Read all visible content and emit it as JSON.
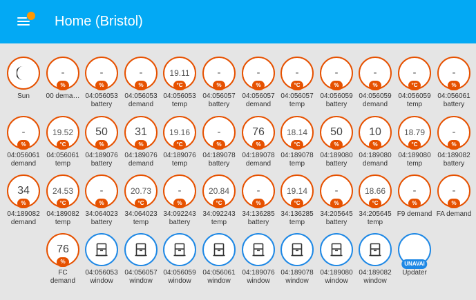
{
  "header": {
    "title": "Home (Bristol)"
  },
  "badges": [
    {
      "value": "",
      "unit": "",
      "label1": "Sun",
      "label2": "",
      "icon": "moon-icon"
    },
    {
      "value": "-",
      "unit": "%",
      "label1": "00 dema…",
      "label2": ""
    },
    {
      "value": "-",
      "unit": "%",
      "label1": "04:056053",
      "label2": "battery"
    },
    {
      "value": "-",
      "unit": "%",
      "label1": "04:056053",
      "label2": "demand"
    },
    {
      "value": "19.11",
      "unit": "°C",
      "label1": "04:056053",
      "label2": "temp"
    },
    {
      "value": "-",
      "unit": "%",
      "label1": "04:056057",
      "label2": "battery"
    },
    {
      "value": "-",
      "unit": "%",
      "label1": "04:056057",
      "label2": "demand"
    },
    {
      "value": "-",
      "unit": "°C",
      "label1": "04:056057",
      "label2": "temp"
    },
    {
      "value": "-",
      "unit": "%",
      "label1": "04:056059",
      "label2": "battery"
    },
    {
      "value": "-",
      "unit": "%",
      "label1": "04:056059",
      "label2": "demand"
    },
    {
      "value": "-",
      "unit": "°C",
      "label1": "04:056059",
      "label2": "temp"
    },
    {
      "value": "-",
      "unit": "%",
      "label1": "04:056061",
      "label2": "battery"
    },
    {
      "value": "-",
      "unit": "%",
      "label1": "04:056061",
      "label2": "demand"
    },
    {
      "value": "19.52",
      "unit": "°C",
      "label1": "04:056061",
      "label2": "temp"
    },
    {
      "value": "50",
      "unit": "%",
      "label1": "04:189076",
      "label2": "battery"
    },
    {
      "value": "31",
      "unit": "%",
      "label1": "04:189076",
      "label2": "demand"
    },
    {
      "value": "19.16",
      "unit": "°C",
      "label1": "04:189076",
      "label2": "temp"
    },
    {
      "value": "-",
      "unit": "%",
      "label1": "04:189078",
      "label2": "battery"
    },
    {
      "value": "76",
      "unit": "%",
      "label1": "04:189078",
      "label2": "demand"
    },
    {
      "value": "18.14",
      "unit": "°C",
      "label1": "04:189078",
      "label2": "temp"
    },
    {
      "value": "50",
      "unit": "%",
      "label1": "04:189080",
      "label2": "battery"
    },
    {
      "value": "10",
      "unit": "%",
      "label1": "04:189080",
      "label2": "demand"
    },
    {
      "value": "18.79",
      "unit": "°C",
      "label1": "04:189080",
      "label2": "temp"
    },
    {
      "value": "-",
      "unit": "%",
      "label1": "04:189082",
      "label2": "battery"
    },
    {
      "value": "34",
      "unit": "%",
      "label1": "04:189082",
      "label2": "demand"
    },
    {
      "value": "24.53",
      "unit": "°C",
      "label1": "04:189082",
      "label2": "temp"
    },
    {
      "value": "-",
      "unit": "%",
      "label1": "34:064023",
      "label2": "battery"
    },
    {
      "value": "20.73",
      "unit": "°C",
      "label1": "34:064023",
      "label2": "temp"
    },
    {
      "value": "-",
      "unit": "%",
      "label1": "34:092243",
      "label2": "battery"
    },
    {
      "value": "20.84",
      "unit": "°C",
      "label1": "34:092243",
      "label2": "temp"
    },
    {
      "value": "-",
      "unit": "%",
      "label1": "34:136285",
      "label2": "battery"
    },
    {
      "value": "19.14",
      "unit": "°C",
      "label1": "34:136285",
      "label2": "temp"
    },
    {
      "value": "-",
      "unit": "%",
      "label1": "34:205645",
      "label2": "battery"
    },
    {
      "value": "18.66",
      "unit": "°C",
      "label1": "34:205645",
      "label2": "temp"
    },
    {
      "value": "-",
      "unit": "%",
      "label1": "F9 demand",
      "label2": ""
    },
    {
      "value": "-",
      "unit": "%",
      "label1": "FA demand",
      "label2": ""
    },
    {
      "value": "76",
      "unit": "%",
      "label1": "FC",
      "label2": "demand"
    },
    {
      "value": "",
      "unit": "",
      "label1": "04:056053",
      "label2": "window",
      "icon": "window-closed-icon"
    },
    {
      "value": "",
      "unit": "",
      "label1": "04:056057",
      "label2": "window",
      "icon": "window-closed-icon"
    },
    {
      "value": "",
      "unit": "",
      "label1": "04:056059",
      "label2": "window",
      "icon": "window-closed-icon"
    },
    {
      "value": "",
      "unit": "",
      "label1": "04:056061",
      "label2": "window",
      "icon": "window-closed-icon"
    },
    {
      "value": "",
      "unit": "",
      "label1": "04:189076",
      "label2": "window",
      "icon": "window-closed-icon"
    },
    {
      "value": "",
      "unit": "",
      "label1": "04:189078",
      "label2": "window",
      "icon": "window-closed-icon"
    },
    {
      "value": "",
      "unit": "",
      "label1": "04:189080",
      "label2": "window",
      "icon": "window-closed-icon"
    },
    {
      "value": "",
      "unit": "",
      "label1": "04:189082",
      "label2": "window",
      "icon": "window-closed-icon"
    },
    {
      "value": "",
      "unit": "UNAVAI",
      "label1": "Updater",
      "label2": ""
    }
  ],
  "colors": {
    "header": "#03a9f4",
    "badge_border": "#e65100",
    "window_border": "#1e88e5",
    "notification_dot": "#ff9800"
  }
}
